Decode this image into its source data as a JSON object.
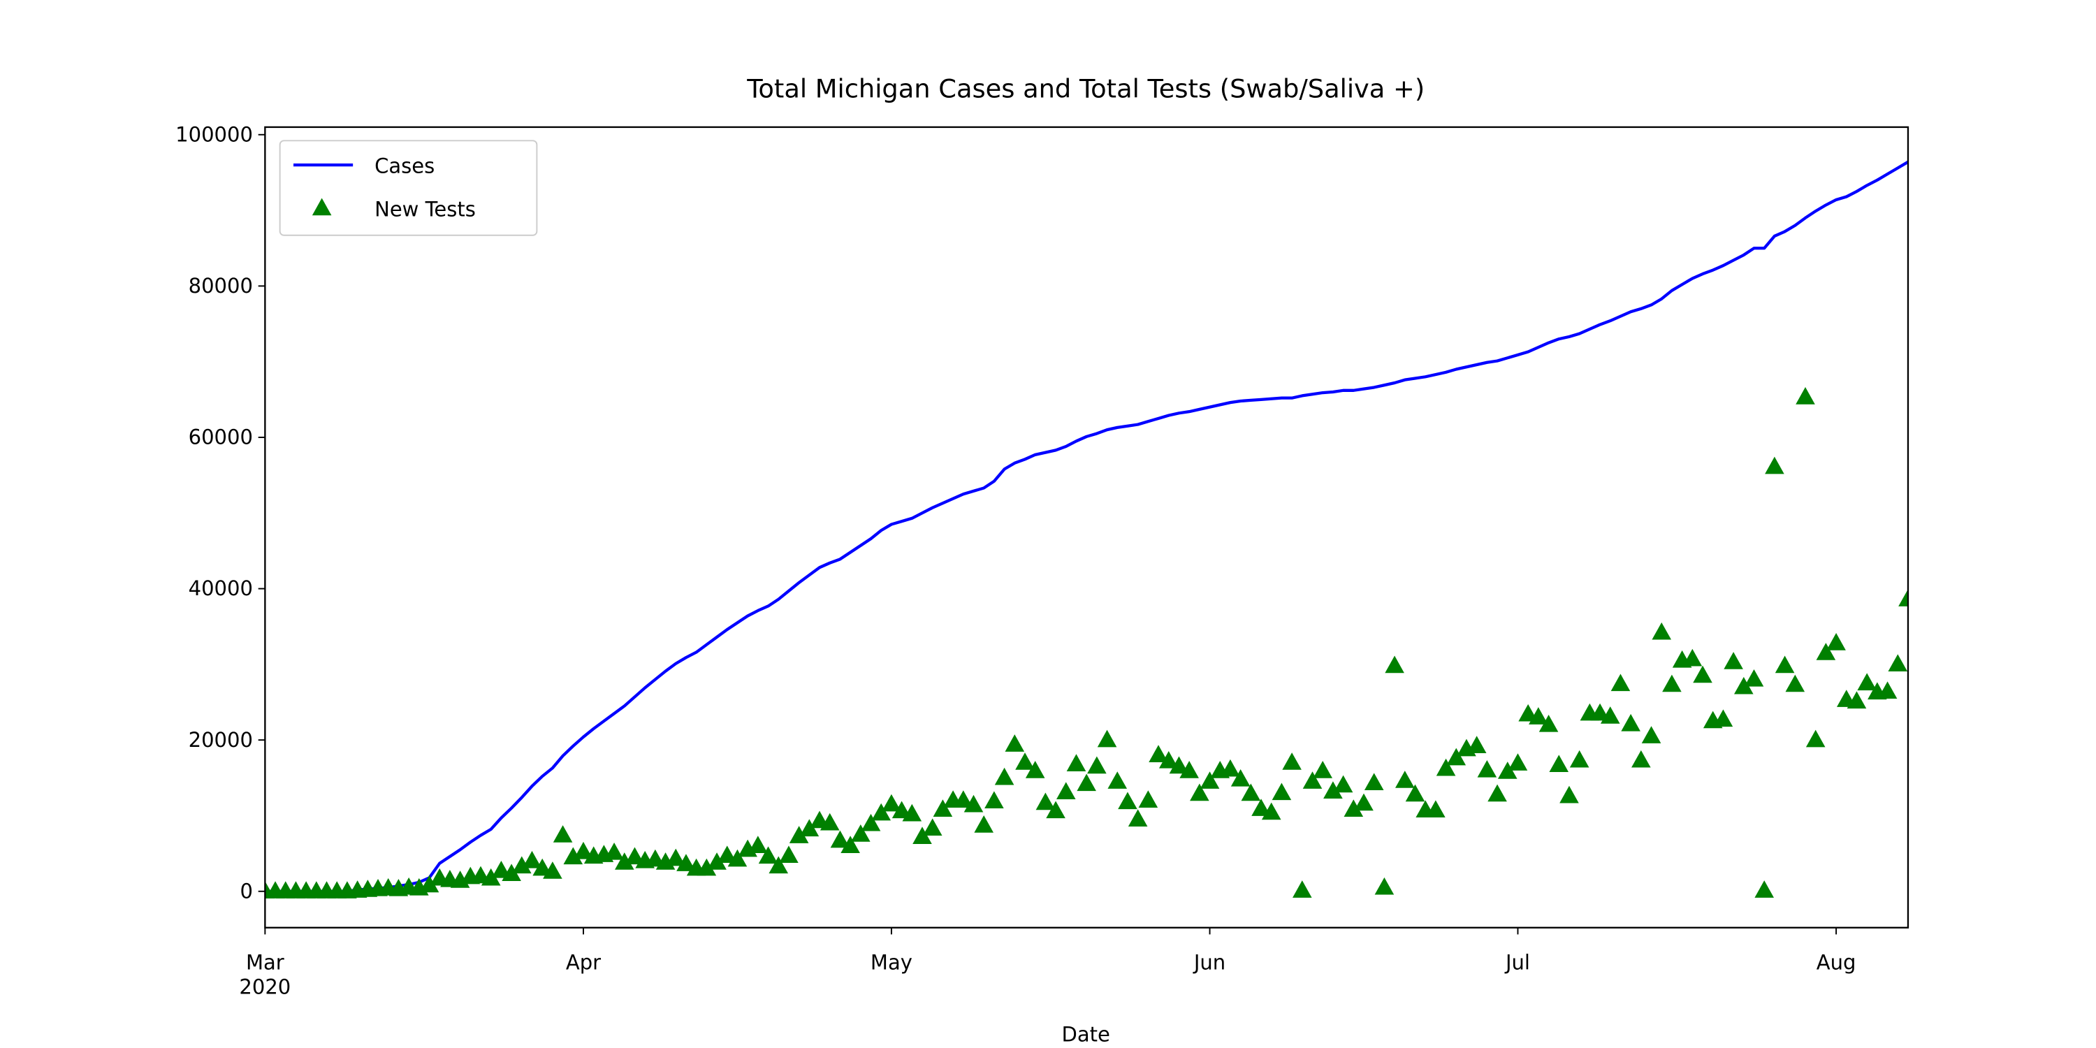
{
  "chart_data": {
    "type": "line",
    "title": "Total Michigan Cases and Total Tests (Swab/Saliva +)",
    "x_label": "Date",
    "x": [
      "2020-03-01",
      "2020-03-02",
      "2020-03-03",
      "2020-03-04",
      "2020-03-05",
      "2020-03-06",
      "2020-03-07",
      "2020-03-08",
      "2020-03-09",
      "2020-03-10",
      "2020-03-11",
      "2020-03-12",
      "2020-03-13",
      "2020-03-14",
      "2020-03-15",
      "2020-03-16",
      "2020-03-17",
      "2020-03-18",
      "2020-03-19",
      "2020-03-20",
      "2020-03-21",
      "2020-03-22",
      "2020-03-23",
      "2020-03-24",
      "2020-03-25",
      "2020-03-26",
      "2020-03-27",
      "2020-03-28",
      "2020-03-29",
      "2020-03-30",
      "2020-03-31",
      "2020-04-01",
      "2020-04-02",
      "2020-04-03",
      "2020-04-04",
      "2020-04-05",
      "2020-04-06",
      "2020-04-07",
      "2020-04-08",
      "2020-04-09",
      "2020-04-10",
      "2020-04-11",
      "2020-04-12",
      "2020-04-13",
      "2020-04-14",
      "2020-04-15",
      "2020-04-16",
      "2020-04-17",
      "2020-04-18",
      "2020-04-19",
      "2020-04-20",
      "2020-04-21",
      "2020-04-22",
      "2020-04-23",
      "2020-04-24",
      "2020-04-25",
      "2020-04-26",
      "2020-04-27",
      "2020-04-28",
      "2020-04-29",
      "2020-04-30",
      "2020-05-01",
      "2020-05-02",
      "2020-05-03",
      "2020-05-04",
      "2020-05-05",
      "2020-05-06",
      "2020-05-07",
      "2020-05-08",
      "2020-05-09",
      "2020-05-10",
      "2020-05-11",
      "2020-05-12",
      "2020-05-13",
      "2020-05-14",
      "2020-05-15",
      "2020-05-16",
      "2020-05-17",
      "2020-05-18",
      "2020-05-19",
      "2020-05-20",
      "2020-05-21",
      "2020-05-22",
      "2020-05-23",
      "2020-05-24",
      "2020-05-25",
      "2020-05-26",
      "2020-05-27",
      "2020-05-28",
      "2020-05-29",
      "2020-05-30",
      "2020-05-31",
      "2020-06-01",
      "2020-06-02",
      "2020-06-03",
      "2020-06-04",
      "2020-06-05",
      "2020-06-06",
      "2020-06-07",
      "2020-06-08",
      "2020-06-09",
      "2020-06-10",
      "2020-06-11",
      "2020-06-12",
      "2020-06-13",
      "2020-06-14",
      "2020-06-15",
      "2020-06-16",
      "2020-06-17",
      "2020-06-18",
      "2020-06-19",
      "2020-06-20",
      "2020-06-21",
      "2020-06-22",
      "2020-06-23",
      "2020-06-24",
      "2020-06-25",
      "2020-06-26",
      "2020-06-27",
      "2020-06-28",
      "2020-06-29",
      "2020-06-30",
      "2020-07-01",
      "2020-07-02",
      "2020-07-03",
      "2020-07-04",
      "2020-07-05",
      "2020-07-06",
      "2020-07-07",
      "2020-07-08",
      "2020-07-09",
      "2020-07-10",
      "2020-07-11",
      "2020-07-12",
      "2020-07-13",
      "2020-07-14",
      "2020-07-15",
      "2020-07-16",
      "2020-07-17",
      "2020-07-18",
      "2020-07-19",
      "2020-07-20",
      "2020-07-21",
      "2020-07-22",
      "2020-07-23",
      "2020-07-24",
      "2020-07-25",
      "2020-07-26",
      "2020-07-27",
      "2020-07-28",
      "2020-07-29",
      "2020-07-30",
      "2020-07-31",
      "2020-08-01",
      "2020-08-02",
      "2020-08-03",
      "2020-08-04",
      "2020-08-05",
      "2020-08-06",
      "2020-08-07",
      "2020-08-08"
    ],
    "series": [
      {
        "name": "Cases",
        "type": "line",
        "color": "#0000ff",
        "values": [
          0,
          0,
          0,
          0,
          0,
          0,
          0,
          0,
          0,
          200,
          300,
          400,
          500,
          700,
          900,
          1200,
          1800,
          3700,
          4600,
          5500,
          6500,
          7400,
          8200,
          9700,
          11000,
          12400,
          13900,
          15200,
          16300,
          17900,
          19200,
          20400,
          21500,
          22500,
          23500,
          24500,
          25700,
          26900,
          28000,
          29100,
          30100,
          30900,
          31600,
          32600,
          33600,
          34600,
          35500,
          36400,
          37100,
          37700,
          38600,
          39700,
          40800,
          41800,
          42800,
          43400,
          43900,
          44800,
          45700,
          46600,
          47700,
          48500,
          48900,
          49300,
          50000,
          50700,
          51300,
          51900,
          52500,
          52900,
          53300,
          54200,
          55800,
          56600,
          57100,
          57700,
          58000,
          58300,
          58800,
          59500,
          60100,
          60500,
          61000,
          61300,
          61500,
          61700,
          62100,
          62500,
          62900,
          63200,
          63400,
          63700,
          64000,
          64300,
          64600,
          64800,
          64900,
          65000,
          65100,
          65200,
          65200,
          65500,
          65700,
          65900,
          66000,
          66200,
          66200,
          66400,
          66600,
          66900,
          67200,
          67600,
          67800,
          68000,
          68300,
          68600,
          69000,
          69300,
          69600,
          69900,
          70100,
          70500,
          70900,
          71300,
          71900,
          72500,
          73000,
          73300,
          73700,
          74300,
          74900,
          75400,
          76000,
          76600,
          77000,
          77500,
          78300,
          79400,
          80200,
          81000,
          81600,
          82100,
          82700,
          83400,
          84100,
          85000,
          85000,
          86600,
          87200,
          88000,
          89000,
          89900,
          90700,
          91400,
          91800,
          92500,
          93300,
          94000,
          94800,
          95600,
          96400
        ]
      },
      {
        "name": "New Tests",
        "type": "scatter",
        "marker": "triangle",
        "color": "#008000",
        "values": [
          0,
          0,
          0,
          0,
          0,
          0,
          0,
          0,
          0,
          100,
          200,
          300,
          400,
          300,
          500,
          400,
          800,
          1700,
          1500,
          1400,
          1900,
          2000,
          1700,
          2700,
          2300,
          3300,
          4000,
          3000,
          2600,
          7400,
          4500,
          5200,
          4600,
          4800,
          5100,
          3800,
          4500,
          4000,
          4200,
          3800,
          4300,
          3600,
          3000,
          3000,
          3800,
          4700,
          4200,
          5500,
          6000,
          4600,
          3300,
          4700,
          7300,
          8200,
          9300,
          9000,
          6700,
          6000,
          7500,
          8900,
          10300,
          11500,
          10600,
          10200,
          7200,
          8300,
          10800,
          12000,
          12000,
          11400,
          8700,
          11900,
          15000,
          19400,
          17000,
          15900,
          11700,
          10600,
          13100,
          16800,
          14200,
          16500,
          20000,
          14500,
          11800,
          9500,
          12000,
          18000,
          17200,
          16500,
          15900,
          12900,
          14500,
          15900,
          16100,
          14800,
          12900,
          10900,
          10400,
          13000,
          17000,
          100,
          14500,
          15900,
          13200,
          14000,
          10800,
          11600,
          14300,
          500,
          29800,
          14600,
          12800,
          10700,
          10700,
          16200,
          17600,
          18800,
          19200,
          16000,
          12800,
          15800,
          16900,
          23400,
          23000,
          22000,
          16700,
          12600,
          17300,
          23500,
          23500,
          23100,
          27400,
          22100,
          17300,
          20500,
          34200,
          27300,
          30500,
          30700,
          28500,
          22500,
          22700,
          30300,
          27000,
          28000,
          100,
          56100,
          29800,
          27300,
          65300,
          20000,
          31500,
          32800,
          25300,
          25100,
          27500,
          26300,
          26400,
          30000,
          38600
        ]
      }
    ],
    "xlim": [
      "2020-03-01",
      "2020-08-08"
    ],
    "xticks": [
      {
        "value": "2020-03-01",
        "label": "Mar\n2020"
      },
      {
        "value": "2020-04-01",
        "label": "Apr"
      },
      {
        "value": "2020-05-01",
        "label": "May"
      },
      {
        "value": "2020-06-01",
        "label": "Jun"
      },
      {
        "value": "2020-07-01",
        "label": "Jul"
      },
      {
        "value": "2020-08-01",
        "label": "Aug"
      }
    ],
    "ylim": [
      -4800,
      101000
    ],
    "yticks": [
      0,
      20000,
      40000,
      60000,
      80000,
      100000
    ],
    "grid": false,
    "legend": "upper left"
  }
}
